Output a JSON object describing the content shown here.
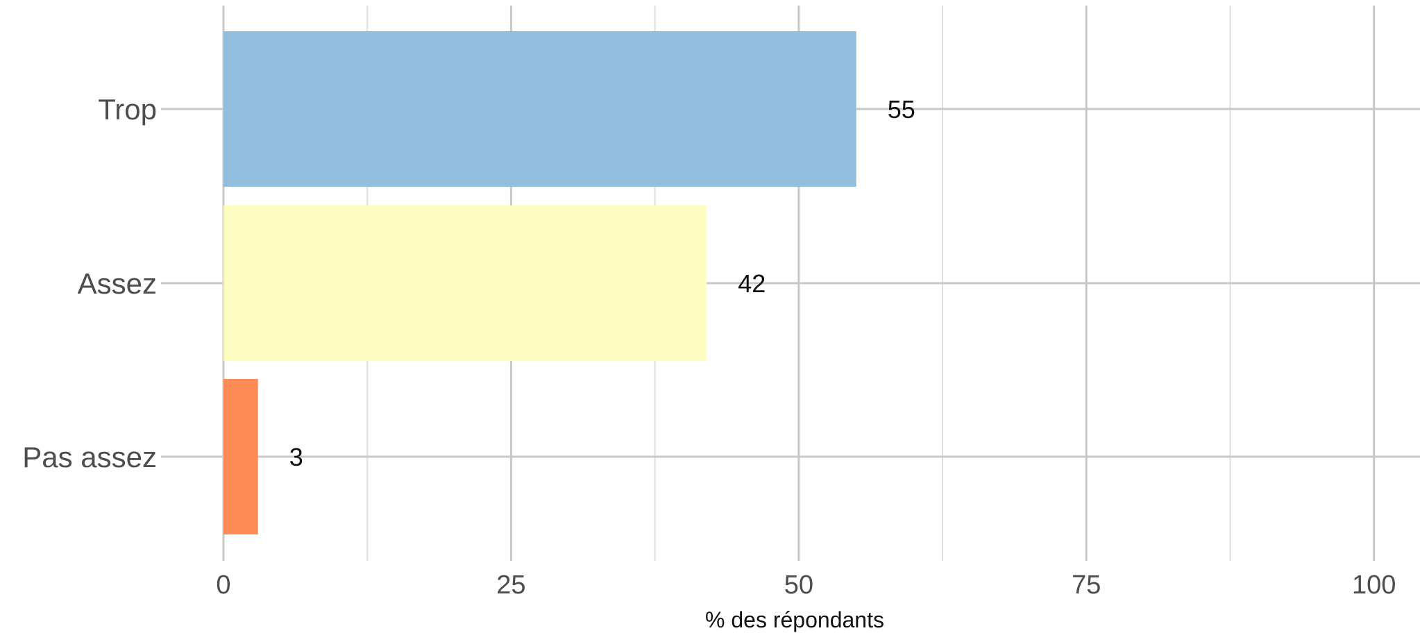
{
  "chart_data": {
    "type": "bar",
    "orientation": "horizontal",
    "categories": [
      "Trop",
      "Assez",
      "Pas assez"
    ],
    "values": [
      55,
      42,
      3
    ],
    "data_labels": [
      "55",
      "42",
      "3"
    ],
    "colors": [
      "#92bddc",
      "#fefec2",
      "#fe8c56"
    ],
    "title": "",
    "xlabel": "% des répondants",
    "ylabel": "",
    "xlim": [
      0,
      104
    ],
    "x_ticks": [
      0,
      25,
      50,
      75,
      100
    ],
    "x_tick_labels": [
      "0",
      "25",
      "50",
      "75",
      "100"
    ],
    "x_minor_ticks": [
      12.5,
      37.5,
      62.5,
      87.5
    ],
    "grid": true,
    "legend": "none"
  }
}
